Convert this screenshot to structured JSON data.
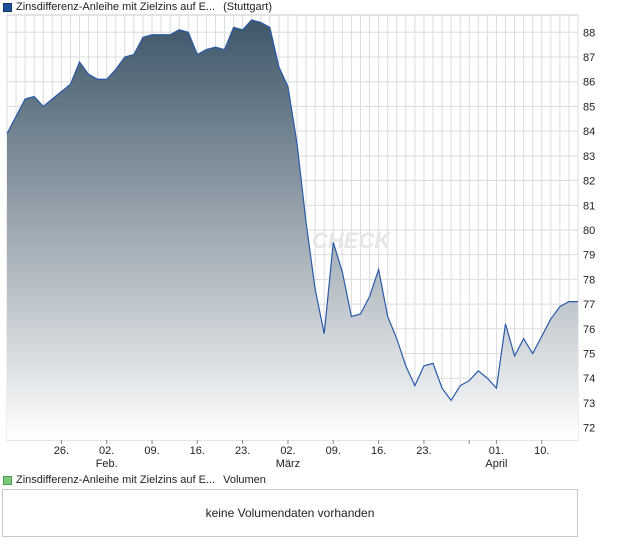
{
  "legend_price": {
    "name": "Zinsdifferenz-Anleihe mit Zielzins auf E...",
    "exchange": "(Stuttgart)"
  },
  "legend_volume": {
    "name": "Zinsdifferenz-Anleihe mit Zielzins auf E...",
    "label": "Volumen"
  },
  "volume_message": "keine Volumendaten vorhanden",
  "watermark": "CHECK",
  "colors": {
    "line": "#2a5ba8",
    "fill_top": "#3f5669",
    "fill_bottom": "#ffffff",
    "grid": "#dcdcdc"
  },
  "chart_data": {
    "type": "area",
    "ylim": [
      71.5,
      88.7
    ],
    "ytick_values": [
      72,
      73,
      74,
      75,
      76,
      77,
      78,
      79,
      80,
      81,
      82,
      83,
      84,
      85,
      86,
      87,
      88
    ],
    "ytick_labels": [
      "72",
      "73",
      "74",
      "75",
      "76",
      "77",
      "78",
      "79",
      "80",
      "81",
      "82",
      "83",
      "84",
      "85",
      "86",
      "87",
      "88"
    ],
    "x_ticks": [
      {
        "x": 6,
        "label": "26.",
        "sub": ""
      },
      {
        "x": 11,
        "label": "02.",
        "sub": "Feb."
      },
      {
        "x": 16,
        "label": "09.",
        "sub": ""
      },
      {
        "x": 21,
        "label": "16.",
        "sub": ""
      },
      {
        "x": 26,
        "label": "23.",
        "sub": ""
      },
      {
        "x": 31,
        "label": "02.",
        "sub": "März"
      },
      {
        "x": 36,
        "label": "09.",
        "sub": ""
      },
      {
        "x": 41,
        "label": "16.",
        "sub": ""
      },
      {
        "x": 46,
        "label": "23.",
        "sub": ""
      },
      {
        "x": 51,
        "label": ""
      },
      {
        "x": 54,
        "label": "01.",
        "sub": "April"
      },
      {
        "x": 59,
        "label": "10.",
        "sub": ""
      }
    ],
    "xlim": [
      0,
      63
    ],
    "x": [
      0,
      1,
      2,
      3,
      4,
      5,
      6,
      7,
      8,
      9,
      10,
      11,
      12,
      13,
      14,
      15,
      16,
      17,
      18,
      19,
      20,
      21,
      22,
      23,
      24,
      25,
      26,
      27,
      28,
      29,
      30,
      31,
      32,
      33,
      34,
      35,
      36,
      37,
      38,
      39,
      40,
      41,
      42,
      43,
      44,
      45,
      46,
      47,
      48,
      49,
      50,
      51,
      52,
      53,
      54,
      55,
      56,
      57,
      58,
      59,
      60,
      61,
      62,
      63
    ],
    "values": [
      83.9,
      84.6,
      85.3,
      85.4,
      85.0,
      85.3,
      85.6,
      85.9,
      86.8,
      86.3,
      86.1,
      86.1,
      86.5,
      87.0,
      87.1,
      87.8,
      87.9,
      87.9,
      87.9,
      88.1,
      88.0,
      87.1,
      87.3,
      87.4,
      87.3,
      88.2,
      88.1,
      88.5,
      88.4,
      88.2,
      86.6,
      85.8,
      83.5,
      80.3,
      77.6,
      75.8,
      79.5,
      78.3,
      76.5,
      76.6,
      77.3,
      78.4,
      76.5,
      75.6,
      74.5,
      73.7,
      74.5,
      74.6,
      73.6,
      73.1,
      73.7,
      73.9,
      74.3,
      74.0,
      73.6,
      76.2,
      74.9,
      75.6,
      75.0,
      75.7,
      76.4,
      76.9,
      77.1,
      77.1
    ]
  }
}
